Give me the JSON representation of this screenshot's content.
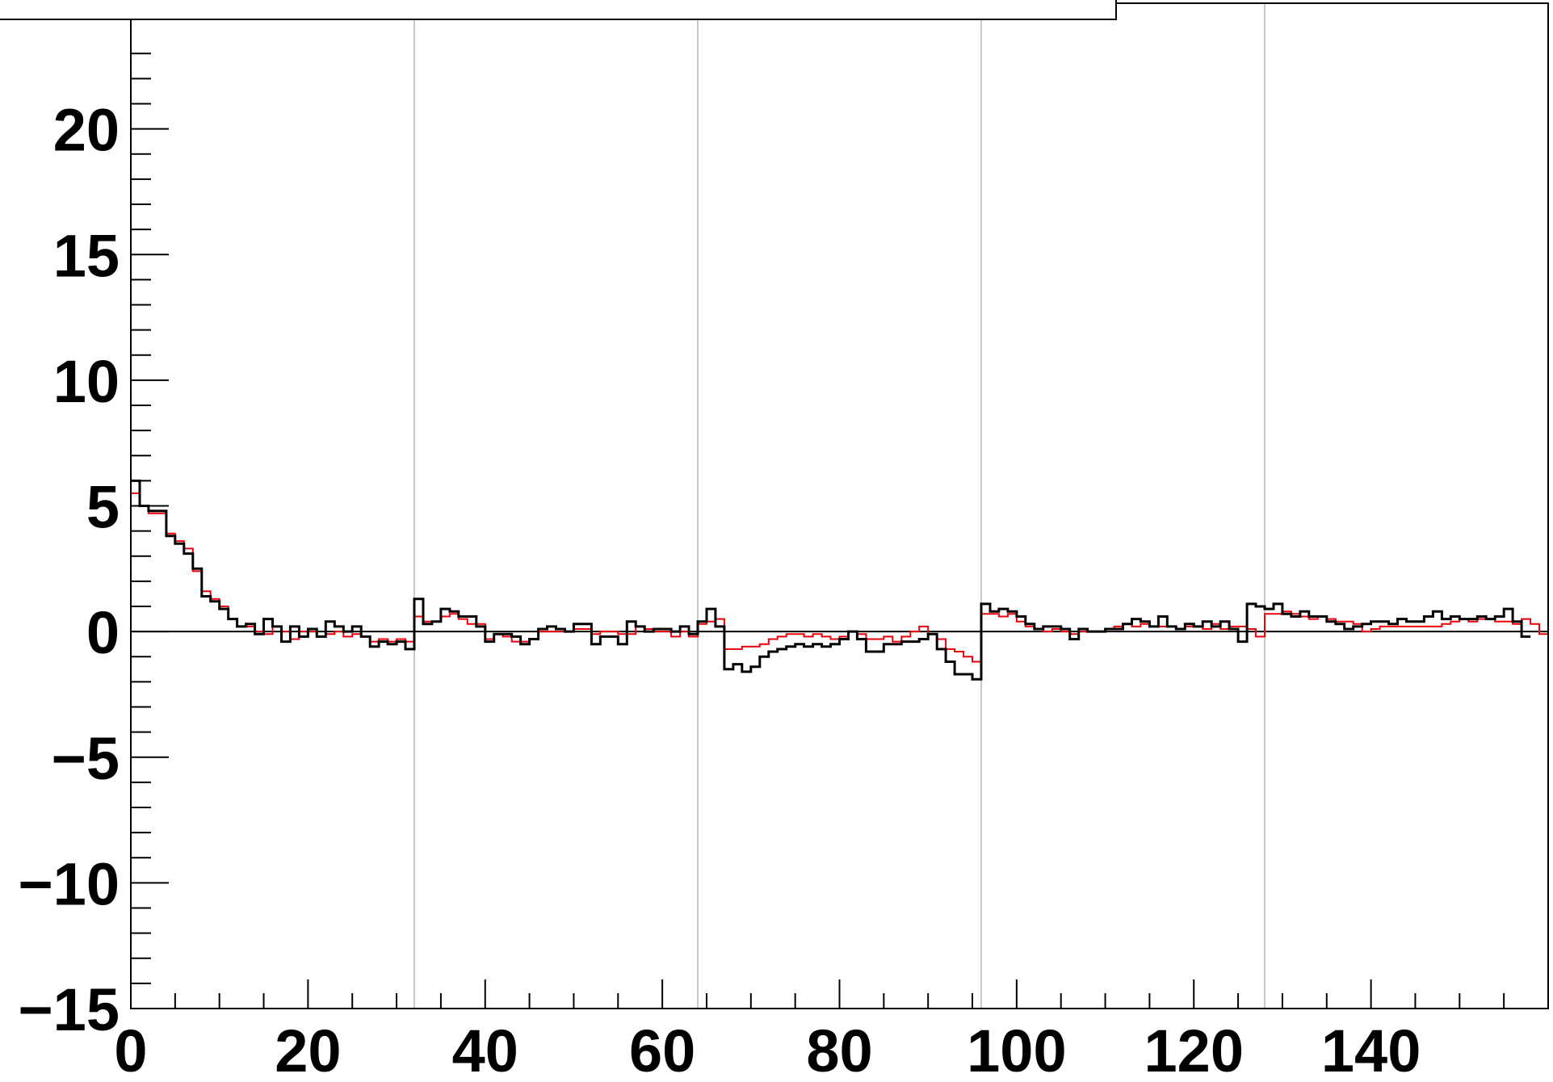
{
  "chart_data": {
    "type": "line",
    "title": "",
    "xlabel": "",
    "ylabel": "",
    "xlim": [
      0,
      160
    ],
    "ylim": [
      -15,
      25
    ],
    "x_ticks": [
      0,
      20,
      40,
      60,
      80,
      100,
      120,
      140
    ],
    "x_tick_labels": [
      "0",
      "20",
      "40",
      "60",
      "80",
      "100",
      "120",
      "140"
    ],
    "y_ticks": [
      -15,
      -10,
      -5,
      0,
      5,
      10,
      15,
      20
    ],
    "y_tick_labels": [
      "−15",
      "−10",
      "−5",
      "0",
      "5",
      "10",
      "15",
      "20"
    ],
    "vertical_grid_x": [
      32,
      64,
      96,
      128
    ],
    "zero_line": true,
    "bin_width": 1,
    "series": [
      {
        "color": "#e8000b",
        "values": [
          5.5,
          5.0,
          4.7,
          4.7,
          3.9,
          3.6,
          3.3,
          2.4,
          1.6,
          1.3,
          1.0,
          0.5,
          0.2,
          0.2,
          0.0,
          -0.1,
          0.2,
          0.0,
          -0.3,
          0.0,
          0.0,
          -0.2,
          -0.1,
          0.0,
          -0.2,
          -0.1,
          -0.2,
          -0.4,
          -0.3,
          -0.4,
          -0.3,
          -0.4,
          0.6,
          0.4,
          0.4,
          0.6,
          0.7,
          0.5,
          0.3,
          0.3,
          -0.3,
          -0.1,
          -0.2,
          -0.4,
          -0.4,
          -0.3,
          0.0,
          0.0,
          0.0,
          0.0,
          0.1,
          0.1,
          -0.1,
          0.0,
          0.0,
          -0.1,
          -0.1,
          0.2,
          0.1,
          0.0,
          0.0,
          -0.2,
          0.0,
          -0.2,
          0.3,
          0.4,
          0.5,
          -0.7,
          -0.7,
          -0.6,
          -0.6,
          -0.5,
          -0.3,
          -0.2,
          -0.1,
          -0.1,
          -0.2,
          -0.1,
          -0.2,
          -0.3,
          -0.2,
          0.0,
          -0.1,
          -0.3,
          -0.3,
          -0.2,
          -0.4,
          -0.2,
          0.0,
          0.2,
          -0.1,
          -0.3,
          -0.7,
          -0.8,
          -1.0,
          -1.2,
          0.7,
          0.7,
          0.6,
          0.7,
          0.4,
          0.2,
          0.1,
          0.0,
          0.1,
          0.0,
          -0.1,
          0.0,
          0.0,
          0.0,
          0.1,
          0.2,
          0.3,
          0.2,
          0.3,
          0.2,
          0.2,
          0.2,
          0.1,
          0.2,
          0.2,
          0.1,
          0.3,
          0.1,
          0.2,
          0.2,
          0.1,
          -0.2,
          0.7,
          0.7,
          0.8,
          0.7,
          0.6,
          0.5,
          0.6,
          0.5,
          0.4,
          0.4,
          0.3,
          0.0,
          0.1,
          0.2,
          0.2,
          0.2,
          0.2,
          0.2,
          0.2,
          0.2,
          0.3,
          0.4,
          0.5,
          0.4,
          0.5,
          0.5,
          0.4,
          0.4,
          0.3,
          0.5,
          0.3,
          -0.1
        ]
      },
      {
        "color": "#000000",
        "values": [
          6.0,
          5.0,
          4.8,
          4.8,
          3.8,
          3.5,
          3.1,
          2.5,
          1.4,
          1.2,
          0.9,
          0.5,
          0.2,
          0.3,
          -0.1,
          0.5,
          0.2,
          -0.4,
          0.2,
          -0.2,
          0.1,
          -0.2,
          0.4,
          0.2,
          0.0,
          0.2,
          -0.2,
          -0.6,
          -0.4,
          -0.5,
          -0.4,
          -0.7,
          1.3,
          0.3,
          0.4,
          0.9,
          0.8,
          0.6,
          0.6,
          0.2,
          -0.4,
          -0.1,
          -0.1,
          -0.2,
          -0.5,
          -0.3,
          0.1,
          0.2,
          0.1,
          0.0,
          0.3,
          0.3,
          -0.5,
          -0.2,
          -0.2,
          -0.5,
          0.4,
          0.2,
          0.0,
          0.1,
          0.1,
          0.0,
          0.2,
          -0.1,
          0.4,
          0.9,
          0.2,
          -1.5,
          -1.3,
          -1.6,
          -1.4,
          -1.0,
          -0.8,
          -0.7,
          -0.6,
          -0.5,
          -0.6,
          -0.5,
          -0.6,
          -0.5,
          -0.3,
          0.0,
          -0.3,
          -0.8,
          -0.8,
          -0.5,
          -0.5,
          -0.4,
          -0.4,
          -0.3,
          -0.1,
          -0.7,
          -1.2,
          -1.7,
          -1.7,
          -1.9,
          1.1,
          0.8,
          0.9,
          0.8,
          0.6,
          0.3,
          0.1,
          0.2,
          0.2,
          0.1,
          -0.3,
          0.1,
          0.0,
          0.0,
          0.1,
          0.1,
          0.3,
          0.5,
          0.4,
          0.2,
          0.6,
          0.2,
          0.1,
          0.3,
          0.2,
          0.4,
          0.2,
          0.4,
          0.1,
          -0.4,
          1.1,
          1.0,
          0.9,
          1.1,
          0.7,
          0.6,
          0.8,
          0.6,
          0.6,
          0.4,
          0.3,
          0.1,
          0.2,
          0.3,
          0.4,
          0.4,
          0.3,
          0.5,
          0.4,
          0.4,
          0.6,
          0.8,
          0.5,
          0.6,
          0.5,
          0.5,
          0.6,
          0.5,
          0.6,
          0.9,
          0.4,
          -0.2
        ]
      }
    ]
  }
}
